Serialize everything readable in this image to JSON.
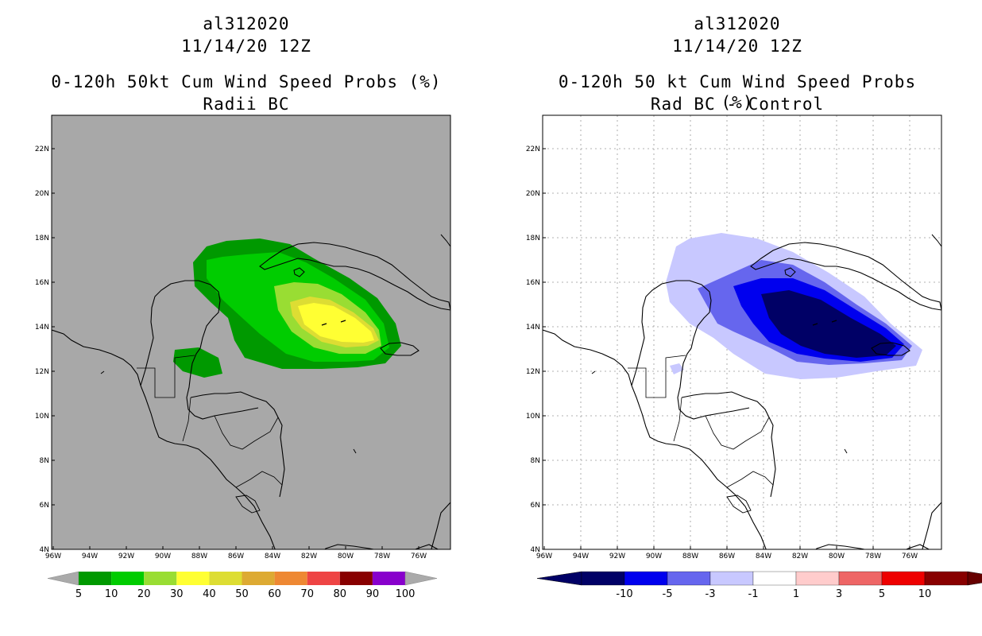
{
  "left_panel": {
    "storm_id": "al312020",
    "date": "11/14/20 12Z",
    "title": "0-120h 50kt Cum Wind Speed Probs (%)",
    "subtitle": "Radii BC",
    "background_color": "#a8a8a8",
    "lat_ticks": [
      "22N",
      "20N",
      "18N",
      "16N",
      "14N",
      "12N",
      "10N",
      "8N",
      "6N",
      "4N"
    ],
    "lon_ticks": [
      "96W",
      "94W",
      "92W",
      "90W",
      "88W",
      "86W",
      "84W",
      "82W",
      "80W",
      "78W",
      "76W"
    ],
    "colorbar": {
      "labels": [
        "5",
        "10",
        "20",
        "30",
        "40",
        "50",
        "60",
        "70",
        "80",
        "90",
        "100"
      ],
      "colors": [
        "#009900",
        "#00cc00",
        "#99dd33",
        "#ffff33",
        "#dddd33",
        "#ddaa33",
        "#ee8833",
        "#ee4444",
        "#880000",
        "#8800cc"
      ],
      "end_color": "#aaaaaa"
    }
  },
  "right_panel": {
    "storm_id": "al312020",
    "date": "11/14/20 12Z",
    "title": "0-120h 50 kt Cum Wind Speed Probs (%)",
    "subtitle": "Rad BC - Control",
    "background_color": "#ffffff",
    "lat_ticks": [
      "22N",
      "20N",
      "18N",
      "16N",
      "14N",
      "12N",
      "10N",
      "8N",
      "6N",
      "4N"
    ],
    "lon_ticks": [
      "96W",
      "94W",
      "92W",
      "90W",
      "88W",
      "86W",
      "84W",
      "82W",
      "80W",
      "78W",
      "76W"
    ],
    "colorbar": {
      "labels": [
        "-10",
        "-5",
        "-3",
        "-1",
        "1",
        "3",
        "5",
        "10"
      ],
      "colors": [
        "#000066",
        "#0000ee",
        "#6666ee",
        "#c8c8ff",
        "#ffffff",
        "#ffcccc",
        "#ee6666",
        "#ee0000",
        "#880000"
      ],
      "left_end_color": "#000066",
      "right_end_color": "#660000"
    }
  }
}
